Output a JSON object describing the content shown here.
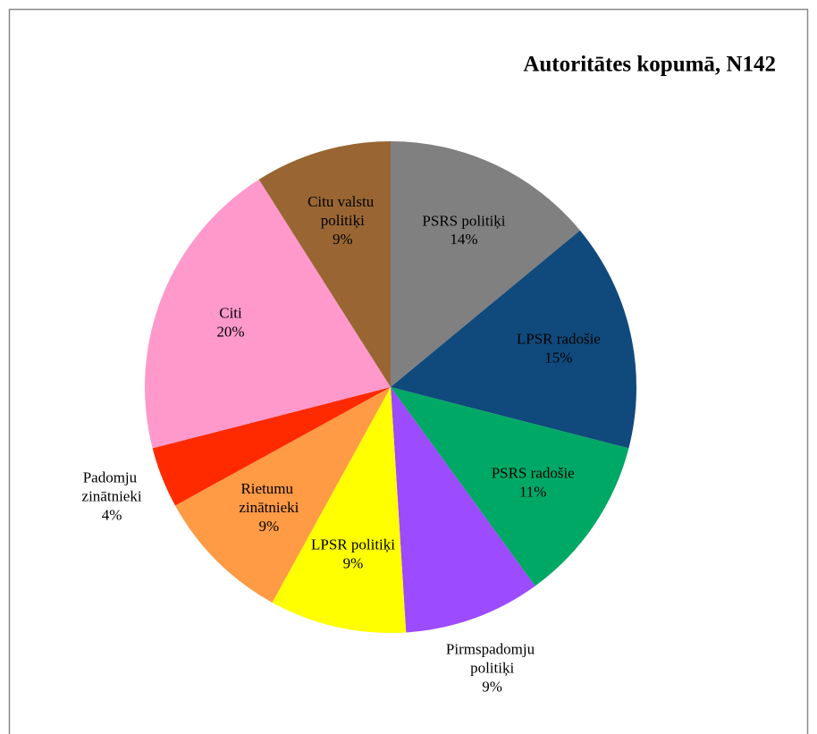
{
  "chart_data": {
    "type": "pie",
    "title": "Autoritātes kopumā, N142",
    "categories": [
      "PSRS politiķi",
      "LPSR radošie",
      "PSRS radošie",
      "Pirmspadomju politiķi",
      "LPSR politiķi",
      "Rietumu zinātnieki",
      "Padomju zinātnieki",
      "Citi",
      "Citu valstu politiķi"
    ],
    "values": [
      14,
      15,
      11,
      9,
      9,
      9,
      4,
      20,
      9
    ],
    "value_labels": [
      "14%",
      "15%",
      "11%",
      "9%",
      "9%",
      "9%",
      "4%",
      "20%",
      "9%"
    ],
    "colors": [
      "#808080",
      "#104a7c",
      "#00a865",
      "#9c4bff",
      "#ffff00",
      "#ff9a45",
      "#ff2a00",
      "#ff99cc",
      "#996633"
    ]
  }
}
